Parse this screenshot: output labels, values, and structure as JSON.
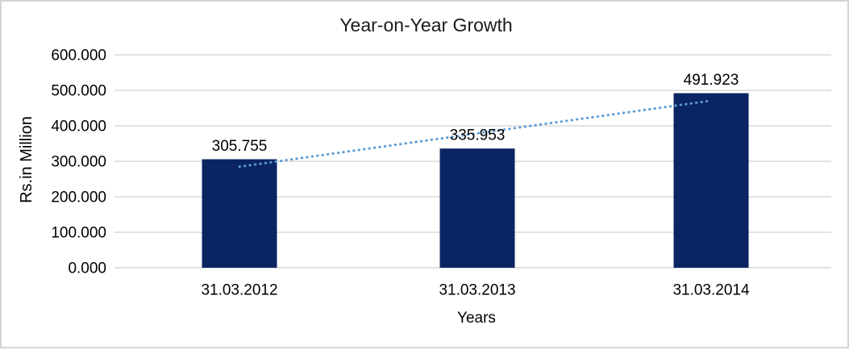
{
  "chart": {
    "title": "Year-on-Year Growth",
    "x_axis_label": "Years",
    "y_axis_label": "Rs.in Million"
  },
  "chart_data": {
    "type": "bar",
    "title": "Year-on-Year Growth",
    "xlabel": "Years",
    "ylabel": "Rs.in Million",
    "categories": [
      "31.03.2012",
      "31.03.2013",
      "31.03.2014"
    ],
    "values": [
      305.755,
      335.953,
      491.923
    ],
    "data_labels": [
      "305.755",
      "335.953",
      "491.923"
    ],
    "y_ticks": [
      "0.000",
      "100.000",
      "200.000",
      "300.000",
      "400.000",
      "500.000",
      "600.000"
    ],
    "ylim": [
      0,
      600
    ],
    "tick_step": 100,
    "grid": true,
    "legend": "none",
    "trendline": {
      "type": "linear",
      "style": "dotted"
    },
    "colors": {
      "bar": "#0A2562",
      "trendline": "#5B9BD5",
      "gridline": "#D9D9D9",
      "text": "#000000",
      "border": "#D4D4D4",
      "background": "#FFFFFF"
    }
  }
}
